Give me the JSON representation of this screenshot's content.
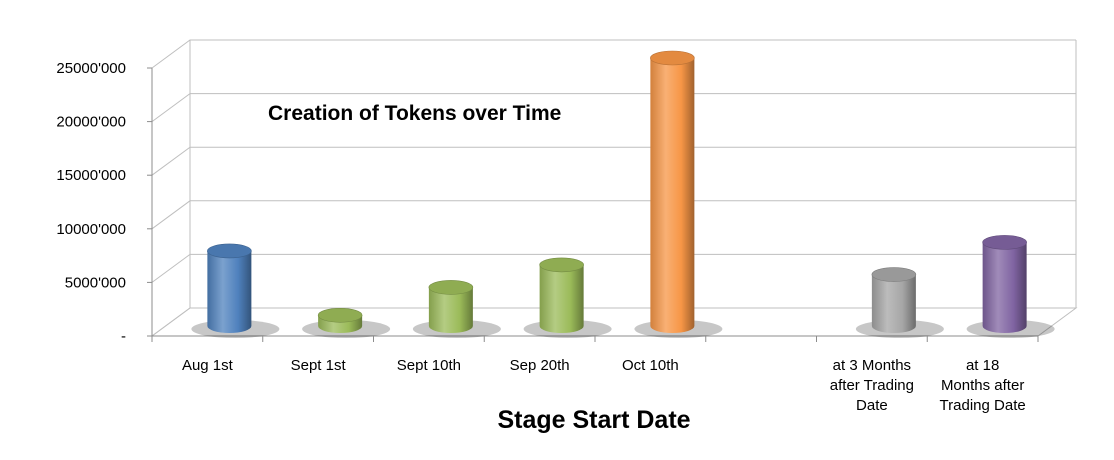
{
  "chart_data": {
    "type": "bar",
    "title": "Creation of Tokens over Time",
    "xlabel": "Stage Start Date",
    "ylabel": "",
    "ylim": [
      0,
      25000000
    ],
    "y_tick_labels": [
      "-",
      "5000'000",
      "10000'000",
      "15000'000",
      "20000'000",
      "25000'000"
    ],
    "categories": [
      "Aug 1st",
      "Sept 1st",
      "Sept 10th",
      "Sep 20th",
      "Oct 10th",
      "",
      "at 3 Months after Trading Date",
      "at 18 Months after Trading Date"
    ],
    "category_lines": [
      [
        "Aug 1st"
      ],
      [
        "Sept 1st"
      ],
      [
        "Sept 10th"
      ],
      [
        "Sep 20th"
      ],
      [
        "Oct 10th"
      ],
      [],
      [
        "at 3 Months",
        "after Trading",
        "Date"
      ],
      [
        "at 18",
        "Months after",
        "Trading Date"
      ]
    ],
    "values": [
      7000000,
      1000000,
      3600000,
      5700000,
      25000000,
      null,
      4800000,
      7800000
    ],
    "bar_colors": [
      "#4f81bd",
      "#9bbb59",
      "#9bbb59",
      "#9bbb59",
      "#f79646",
      null,
      "#a6a6a6",
      "#8064a2"
    ],
    "grid": true,
    "style": "3d-cylinder"
  }
}
